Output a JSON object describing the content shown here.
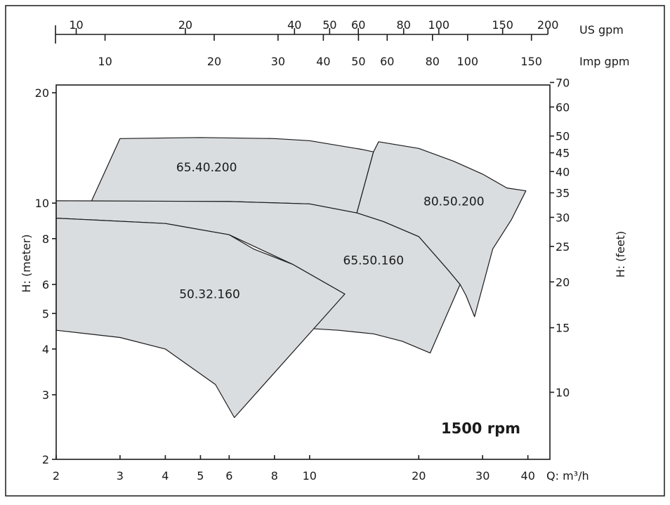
{
  "chart_data": {
    "type": "area",
    "title": "",
    "annotation": "1500 rpm",
    "x_axis": {
      "label": "Q: m³/h",
      "scale": "log",
      "range": [
        2,
        46
      ],
      "ticks": [
        2,
        3,
        4,
        5,
        6,
        8,
        10,
        20,
        30,
        40
      ]
    },
    "y_axis": {
      "label": "H: (meter)",
      "scale": "log",
      "range": [
        2,
        21
      ],
      "ticks": [
        2,
        3,
        4,
        5,
        6,
        8,
        10,
        20
      ]
    },
    "y2_axis": {
      "label": "H: (feet)",
      "ticks": [
        "70",
        "60",
        "50",
        "45",
        "40",
        "35",
        "30",
        "25",
        "20",
        "15",
        "10"
      ]
    },
    "top_axes": [
      {
        "label": "US gpm",
        "ticks": [
          "10",
          "20",
          "40",
          "50",
          "60",
          "80",
          "100",
          "150",
          "200"
        ]
      },
      {
        "label": "Imp gpm",
        "ticks": [
          "10",
          "20",
          "30",
          "40",
          "50",
          "60",
          "80",
          "100",
          "150"
        ]
      }
    ],
    "series": [
      {
        "name": "65.40.200",
        "outline": [
          [
            2.5,
            10.1
          ],
          [
            3.0,
            15.0
          ],
          [
            5.0,
            15.1
          ],
          [
            8.0,
            15.0
          ],
          [
            10.0,
            14.8
          ],
          [
            14.0,
            14.0
          ],
          [
            15.0,
            13.8
          ],
          [
            13.5,
            9.4
          ],
          [
            10.0,
            9.95
          ],
          [
            6.0,
            10.1
          ],
          [
            2.5,
            10.1
          ]
        ]
      },
      {
        "name": "80.50.200",
        "outline": [
          [
            15.0,
            13.8
          ],
          [
            15.5,
            14.7
          ],
          [
            20.0,
            14.1
          ],
          [
            25.0,
            13.0
          ],
          [
            30.0,
            12.0
          ],
          [
            35.0,
            11.0
          ],
          [
            39.5,
            10.8
          ],
          [
            36.0,
            9.0
          ],
          [
            32.0,
            7.5
          ],
          [
            28.5,
            4.9
          ],
          [
            27.0,
            5.6
          ],
          [
            26.0,
            6.0
          ],
          [
            24.0,
            6.6
          ],
          [
            20.0,
            8.1
          ],
          [
            16.0,
            8.9
          ],
          [
            13.5,
            9.4
          ]
        ]
      },
      {
        "name": "65.50.160",
        "outline": [
          [
            2.0,
            10.15
          ],
          [
            6.0,
            10.1
          ],
          [
            10.0,
            9.95
          ],
          [
            13.5,
            9.4
          ],
          [
            16.0,
            8.9
          ],
          [
            20.0,
            8.1
          ],
          [
            24.0,
            6.6
          ],
          [
            26.0,
            6.0
          ],
          [
            21.5,
            3.9
          ],
          [
            18.0,
            4.2
          ],
          [
            15.0,
            4.4
          ],
          [
            12.0,
            4.5
          ],
          [
            10.0,
            4.55
          ],
          [
            12.5,
            5.65
          ],
          [
            9.0,
            6.8
          ],
          [
            6.0,
            8.2
          ],
          [
            4.0,
            8.8
          ],
          [
            2.0,
            9.1
          ],
          [
            2.0,
            10.15
          ]
        ]
      },
      {
        "name": "50.32.160",
        "outline": [
          [
            2.0,
            9.1
          ],
          [
            4.0,
            8.8
          ],
          [
            6.0,
            8.2
          ],
          [
            7.0,
            7.5
          ],
          [
            9.0,
            6.8
          ],
          [
            12.5,
            5.65
          ],
          [
            6.2,
            2.6
          ],
          [
            5.5,
            3.2
          ],
          [
            4.0,
            4.0
          ],
          [
            3.0,
            4.3
          ],
          [
            2.0,
            4.5
          ],
          [
            2.0,
            9.1
          ]
        ]
      }
    ]
  }
}
